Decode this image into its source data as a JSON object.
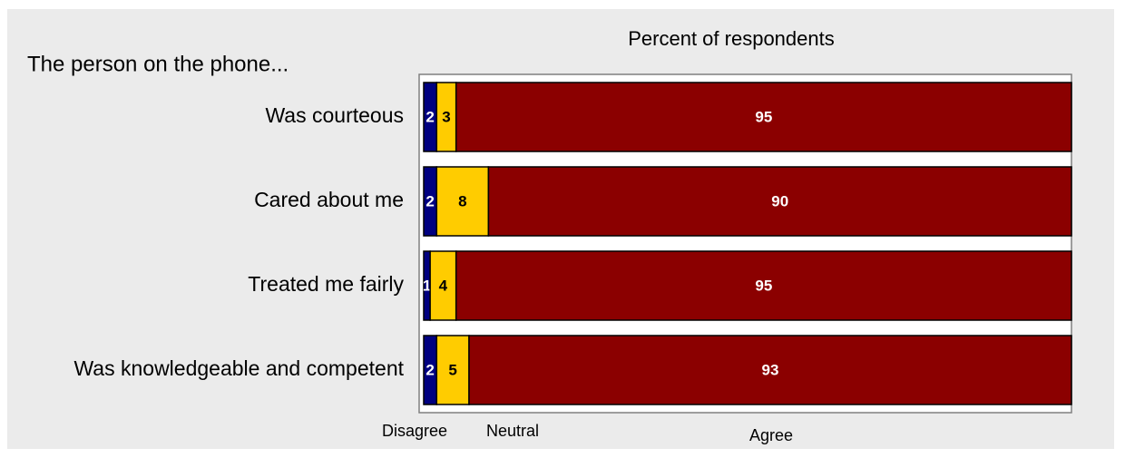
{
  "chart_data": {
    "type": "stacked-bar-horizontal",
    "title": "Percent of respondents",
    "subtitle": "The person on the phone...",
    "categories": [
      "Was courteous",
      "Cared about me",
      "Treated me fairly",
      "Was knowledgeable and competent"
    ],
    "series": [
      {
        "name": "Disagree",
        "color": "#000080",
        "label_color": "#ffffff",
        "values": [
          2,
          2,
          1,
          2
        ]
      },
      {
        "name": "Neutral",
        "color": "#ffcc00",
        "label_color": "#000000",
        "values": [
          3,
          8,
          4,
          5
        ]
      },
      {
        "name": "Agree",
        "color": "#8b0000",
        "label_color": "#ffffff",
        "values": [
          95,
          90,
          95,
          93
        ]
      }
    ],
    "xlim": [
      0,
      100
    ]
  }
}
